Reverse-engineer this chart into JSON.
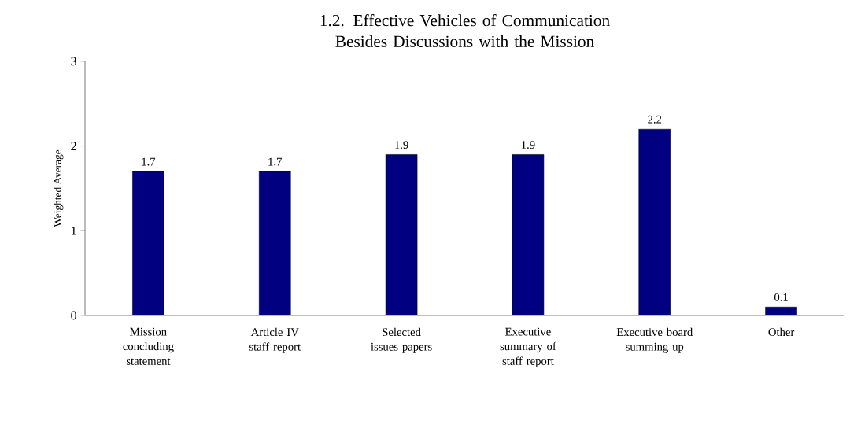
{
  "chart_data": {
    "type": "bar",
    "title": "1.2. Effective Vehicles of Communication Besides Discussions with the Mission",
    "ylabel": "Weighted Average",
    "categories": [
      "Mission concluding statement",
      "Article IV staff report",
      "Selected issues papers",
      "Executive summary of staff report",
      "Executive board summing up",
      "Other"
    ],
    "values": [
      1.7,
      1.7,
      1.9,
      1.9,
      2.2,
      0.1
    ],
    "color": "#000080",
    "ylim": [
      0,
      3
    ],
    "yticks": [
      0,
      1,
      2,
      3
    ],
    "data_labels": true
  }
}
